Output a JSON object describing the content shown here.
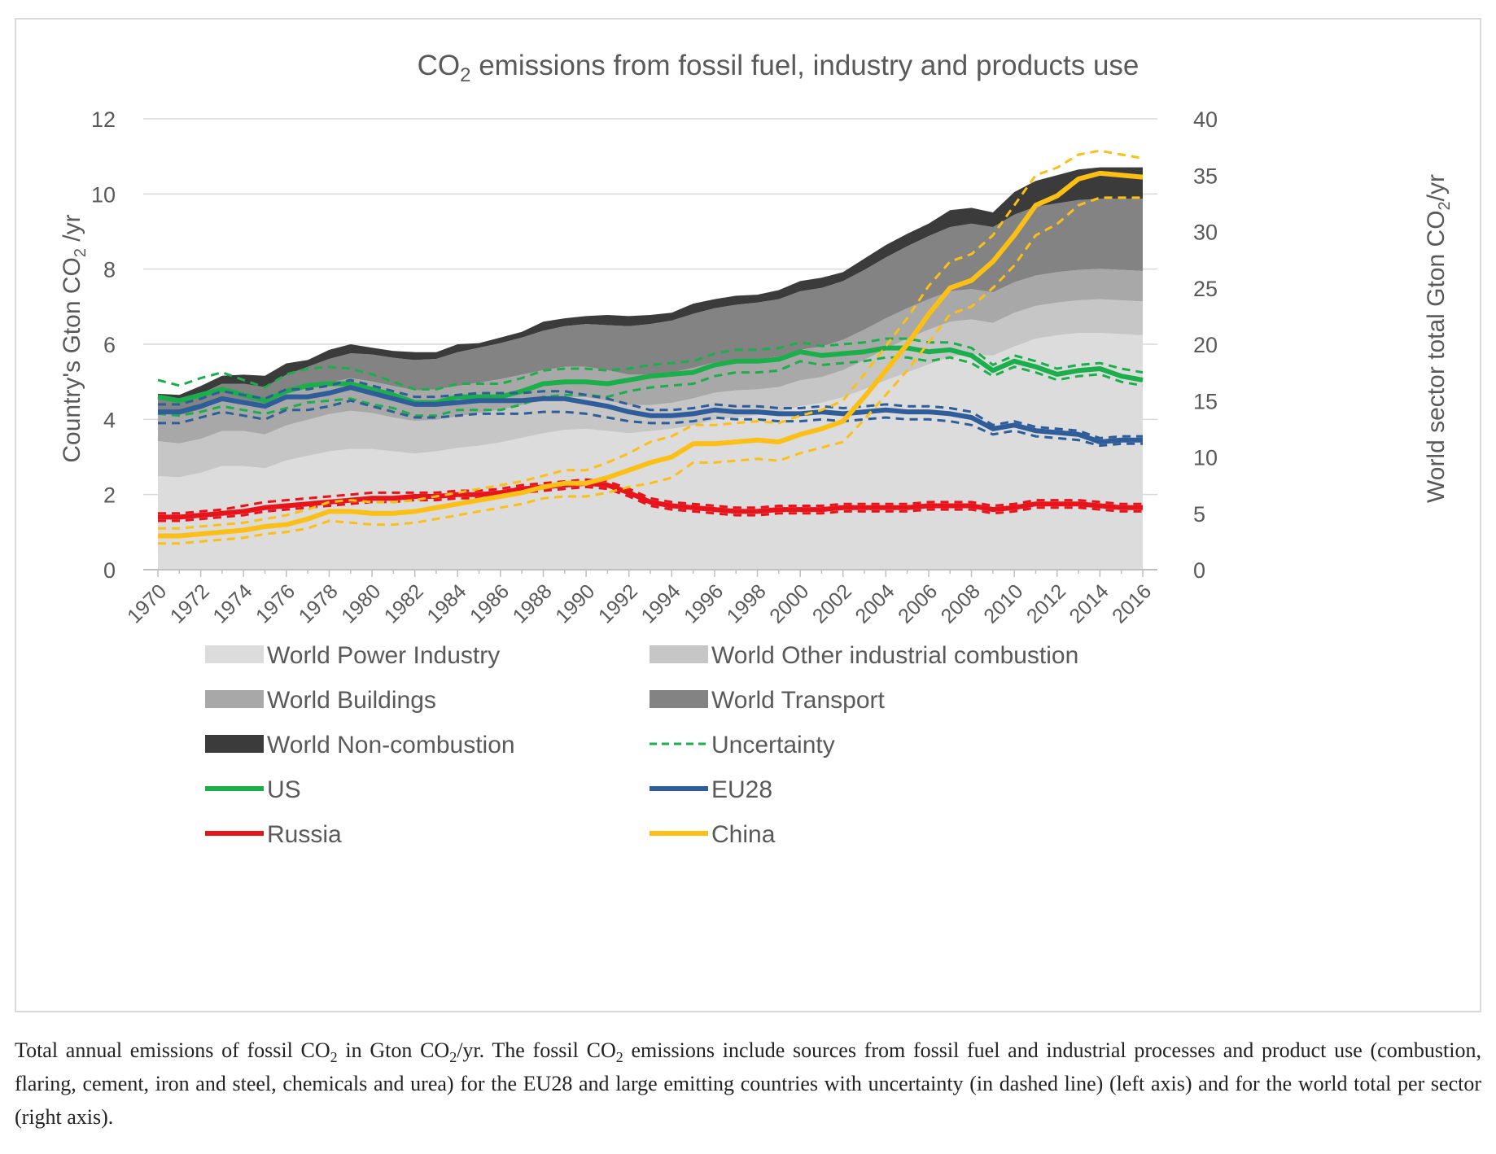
{
  "chart_data": {
    "type": "area",
    "title": "CO2 emissions from fossil fuel, industry and products use",
    "title_parts": {
      "pre": "CO",
      "sub": "2",
      "post": " emissions from fossil fuel, industry and products use"
    },
    "ylabel_left": "Country's Gton CO2 /yr",
    "ylabel_left_parts": {
      "pre": "Country's Gton CO",
      "sub": "2",
      "post": " /yr"
    },
    "ylabel_right": "World sector total Gton CO2/yr",
    "ylabel_right_parts": {
      "pre": "World sector total Gton CO",
      "sub": "2",
      "post": "/yr"
    },
    "ylim_left": [
      0,
      12
    ],
    "ylim_right": [
      0,
      40
    ],
    "yticks_left": [
      0,
      2,
      4,
      6,
      8,
      10,
      12
    ],
    "yticks_right": [
      0,
      5,
      10,
      15,
      20,
      25,
      30,
      35,
      40
    ],
    "x_start": 1970,
    "x_end": 2016,
    "x_tick_labels": [
      "1970",
      "1972",
      "1974",
      "1976",
      "1978",
      "1980",
      "1982",
      "1984",
      "1986",
      "1988",
      "1990",
      "1992",
      "1994",
      "1996",
      "1998",
      "2000",
      "2002",
      "2004",
      "2006",
      "2008",
      "2010",
      "2012",
      "2014",
      "2016"
    ],
    "stack_cumulative_right_axis": [
      {
        "name": "World Power Industry",
        "color": "#dcdcdc",
        "values": [
          8.3,
          8.2,
          8.6,
          9.2,
          9.2,
          9.0,
          9.7,
          10.1,
          10.5,
          10.7,
          10.7,
          10.5,
          10.3,
          10.5,
          10.8,
          11.0,
          11.3,
          11.7,
          12.1,
          12.4,
          12.5,
          12.3,
          12.1,
          12.3,
          12.5,
          12.8,
          13.3,
          13.5,
          13.7,
          14.0,
          14.5,
          14.8,
          15.3,
          16.0,
          16.8,
          17.5,
          18.2,
          18.9,
          19.1,
          19.0,
          19.8,
          20.5,
          20.8,
          21.0,
          21.0,
          20.9,
          20.8
        ]
      },
      {
        "name": "World Other industrial combustion",
        "color": "#c6c6c6",
        "values": [
          11.4,
          11.2,
          11.6,
          12.3,
          12.3,
          12.0,
          12.8,
          13.3,
          13.8,
          14.1,
          13.9,
          13.5,
          13.2,
          13.3,
          13.6,
          13.9,
          14.2,
          14.6,
          15.0,
          15.3,
          15.3,
          15.0,
          14.6,
          14.6,
          14.8,
          15.2,
          15.7,
          15.9,
          16.0,
          16.2,
          16.8,
          17.1,
          17.7,
          18.6,
          19.6,
          20.5,
          21.3,
          22.0,
          22.2,
          21.9,
          22.8,
          23.4,
          23.7,
          23.9,
          24.0,
          23.9,
          23.8
        ]
      },
      {
        "name": "World Buildings",
        "color": "#a8a8a8",
        "values": [
          14.0,
          13.7,
          14.2,
          15.0,
          15.0,
          14.7,
          15.6,
          16.1,
          16.6,
          17.0,
          16.7,
          16.3,
          15.9,
          16.0,
          16.3,
          16.6,
          16.9,
          17.3,
          17.7,
          18.0,
          18.0,
          17.7,
          17.3,
          17.3,
          17.5,
          17.9,
          18.4,
          18.6,
          18.7,
          18.9,
          19.5,
          19.8,
          20.4,
          21.3,
          22.3,
          23.2,
          24.0,
          24.7,
          24.9,
          24.6,
          25.5,
          26.1,
          26.4,
          26.6,
          26.7,
          26.6,
          26.5
        ]
      },
      {
        "name": "World Transport",
        "color": "#838383",
        "values": [
          15.2,
          15.0,
          15.6,
          16.5,
          16.5,
          16.2,
          17.3,
          18.0,
          18.7,
          19.2,
          19.1,
          18.8,
          18.6,
          18.7,
          19.3,
          19.7,
          20.1,
          20.6,
          21.2,
          21.6,
          21.8,
          21.7,
          21.6,
          21.8,
          22.1,
          22.7,
          23.2,
          23.5,
          23.7,
          24.0,
          24.7,
          25.0,
          25.6,
          26.6,
          27.7,
          28.7,
          29.6,
          30.4,
          30.7,
          30.4,
          31.5,
          32.2,
          32.5,
          32.8,
          32.9,
          32.9,
          32.9
        ]
      },
      {
        "name": "World Non-combustion",
        "color": "#3b3b3b",
        "values": [
          15.6,
          15.5,
          16.3,
          17.2,
          17.3,
          17.2,
          18.3,
          18.6,
          19.5,
          20.0,
          19.7,
          19.4,
          19.3,
          19.3,
          20.0,
          20.1,
          20.6,
          21.1,
          22.0,
          22.3,
          22.5,
          22.6,
          22.5,
          22.6,
          22.8,
          23.6,
          24.0,
          24.3,
          24.4,
          24.8,
          25.6,
          25.9,
          26.4,
          27.6,
          28.8,
          29.8,
          30.7,
          31.9,
          32.1,
          31.7,
          33.5,
          34.5,
          35.0,
          35.5,
          35.7,
          35.7,
          35.7
        ]
      }
    ],
    "country_series_left_axis": [
      {
        "name": "US",
        "color": "#1aaf4b",
        "values": [
          4.6,
          4.5,
          4.65,
          4.8,
          4.65,
          4.5,
          4.75,
          4.9,
          4.95,
          4.95,
          4.8,
          4.65,
          4.45,
          4.45,
          4.6,
          4.6,
          4.6,
          4.75,
          4.95,
          5.0,
          5.0,
          4.95,
          5.05,
          5.15,
          5.2,
          5.25,
          5.45,
          5.55,
          5.55,
          5.6,
          5.8,
          5.7,
          5.75,
          5.8,
          5.9,
          5.9,
          5.8,
          5.85,
          5.7,
          5.3,
          5.55,
          5.4,
          5.2,
          5.3,
          5.35,
          5.15,
          5.05
        ],
        "upper": [
          5.05,
          4.9,
          5.1,
          5.25,
          5.05,
          4.85,
          5.2,
          5.35,
          5.4,
          5.35,
          5.2,
          5.0,
          4.8,
          4.8,
          4.95,
          4.95,
          4.95,
          5.1,
          5.3,
          5.35,
          5.35,
          5.3,
          5.35,
          5.45,
          5.5,
          5.55,
          5.75,
          5.85,
          5.85,
          5.9,
          6.05,
          5.95,
          6.0,
          6.05,
          6.15,
          6.15,
          6.05,
          6.05,
          5.9,
          5.45,
          5.7,
          5.55,
          5.35,
          5.45,
          5.5,
          5.35,
          5.25
        ],
        "lower": [
          4.15,
          4.1,
          4.2,
          4.35,
          4.25,
          4.15,
          4.3,
          4.45,
          4.5,
          4.55,
          4.4,
          4.3,
          4.1,
          4.1,
          4.25,
          4.25,
          4.25,
          4.4,
          4.6,
          4.65,
          4.65,
          4.6,
          4.75,
          4.85,
          4.9,
          4.95,
          5.15,
          5.25,
          5.25,
          5.3,
          5.55,
          5.45,
          5.5,
          5.55,
          5.65,
          5.65,
          5.55,
          5.65,
          5.5,
          5.15,
          5.4,
          5.25,
          5.05,
          5.15,
          5.2,
          5.0,
          4.9
        ]
      },
      {
        "name": "EU28",
        "color": "#2e5d9a",
        "values": [
          4.2,
          4.2,
          4.35,
          4.55,
          4.45,
          4.35,
          4.6,
          4.6,
          4.7,
          4.85,
          4.7,
          4.55,
          4.4,
          4.4,
          4.45,
          4.5,
          4.5,
          4.5,
          4.55,
          4.55,
          4.45,
          4.35,
          4.2,
          4.1,
          4.1,
          4.15,
          4.25,
          4.2,
          4.2,
          4.15,
          4.15,
          4.2,
          4.15,
          4.2,
          4.25,
          4.2,
          4.2,
          4.15,
          4.05,
          3.75,
          3.85,
          3.7,
          3.65,
          3.6,
          3.4,
          3.45,
          3.45
        ],
        "upper": [
          4.4,
          4.4,
          4.55,
          4.75,
          4.65,
          4.55,
          4.8,
          4.8,
          4.9,
          5.05,
          4.9,
          4.75,
          4.6,
          4.6,
          4.65,
          4.7,
          4.7,
          4.7,
          4.75,
          4.75,
          4.65,
          4.55,
          4.4,
          4.25,
          4.25,
          4.3,
          4.4,
          4.35,
          4.35,
          4.3,
          4.3,
          4.35,
          4.3,
          4.35,
          4.4,
          4.35,
          4.35,
          4.3,
          4.2,
          3.85,
          3.95,
          3.8,
          3.75,
          3.7,
          3.5,
          3.55,
          3.55
        ],
        "lower": [
          3.9,
          3.9,
          4.05,
          4.2,
          4.1,
          4.0,
          4.25,
          4.25,
          4.35,
          4.5,
          4.35,
          4.2,
          4.05,
          4.05,
          4.1,
          4.15,
          4.15,
          4.15,
          4.2,
          4.2,
          4.15,
          4.05,
          3.95,
          3.9,
          3.9,
          3.95,
          4.05,
          4.0,
          4.0,
          3.95,
          3.95,
          4.0,
          3.95,
          4.0,
          4.05,
          4.0,
          4.0,
          3.95,
          3.85,
          3.6,
          3.7,
          3.55,
          3.5,
          3.45,
          3.3,
          3.35,
          3.35
        ]
      },
      {
        "name": "Russia",
        "color": "#e8141c",
        "values": [
          1.4,
          1.4,
          1.45,
          1.5,
          1.55,
          1.65,
          1.7,
          1.75,
          1.8,
          1.85,
          1.9,
          1.9,
          1.95,
          1.95,
          2.0,
          2.0,
          2.05,
          2.15,
          2.2,
          2.25,
          2.3,
          2.25,
          2.05,
          1.8,
          1.7,
          1.65,
          1.6,
          1.55,
          1.55,
          1.6,
          1.6,
          1.6,
          1.65,
          1.65,
          1.65,
          1.65,
          1.7,
          1.7,
          1.7,
          1.6,
          1.65,
          1.75,
          1.75,
          1.75,
          1.7,
          1.65,
          1.65
        ],
        "upper": [
          1.5,
          1.5,
          1.55,
          1.6,
          1.7,
          1.8,
          1.85,
          1.9,
          1.95,
          2.0,
          2.05,
          2.05,
          2.05,
          2.05,
          2.1,
          2.1,
          2.15,
          2.25,
          2.3,
          2.35,
          2.4,
          2.35,
          2.15,
          1.9,
          1.8,
          1.75,
          1.7,
          1.65,
          1.65,
          1.7,
          1.7,
          1.7,
          1.75,
          1.75,
          1.75,
          1.75,
          1.8,
          1.8,
          1.8,
          1.7,
          1.75,
          1.85,
          1.85,
          1.85,
          1.8,
          1.75,
          1.75
        ],
        "lower": [
          1.3,
          1.3,
          1.35,
          1.4,
          1.45,
          1.55,
          1.6,
          1.65,
          1.7,
          1.75,
          1.8,
          1.8,
          1.85,
          1.85,
          1.9,
          1.9,
          1.95,
          2.05,
          2.1,
          2.15,
          2.2,
          2.15,
          1.95,
          1.7,
          1.6,
          1.55,
          1.5,
          1.45,
          1.45,
          1.5,
          1.5,
          1.5,
          1.55,
          1.55,
          1.55,
          1.55,
          1.6,
          1.6,
          1.6,
          1.5,
          1.55,
          1.65,
          1.65,
          1.65,
          1.6,
          1.55,
          1.55
        ]
      },
      {
        "name": "China",
        "color": "#fcbf15",
        "values": [
          0.9,
          0.9,
          0.95,
          1.0,
          1.05,
          1.15,
          1.2,
          1.35,
          1.55,
          1.55,
          1.5,
          1.5,
          1.55,
          1.65,
          1.75,
          1.85,
          1.95,
          2.05,
          2.2,
          2.3,
          2.3,
          2.45,
          2.65,
          2.85,
          3.0,
          3.35,
          3.35,
          3.4,
          3.45,
          3.4,
          3.6,
          3.75,
          3.95,
          4.6,
          5.3,
          6.0,
          6.8,
          7.5,
          7.7,
          8.2,
          8.9,
          9.7,
          9.95,
          10.4,
          10.55,
          10.5,
          10.45
        ],
        "upper": [
          1.1,
          1.1,
          1.15,
          1.2,
          1.25,
          1.35,
          1.45,
          1.6,
          1.8,
          1.85,
          1.8,
          1.8,
          1.85,
          1.95,
          2.05,
          2.15,
          2.25,
          2.35,
          2.5,
          2.65,
          2.65,
          2.85,
          3.1,
          3.4,
          3.55,
          3.85,
          3.85,
          3.9,
          3.95,
          3.9,
          4.1,
          4.25,
          4.5,
          5.2,
          5.95,
          6.7,
          7.55,
          8.2,
          8.4,
          8.9,
          9.7,
          10.5,
          10.7,
          11.05,
          11.15,
          11.05,
          10.95
        ],
        "lower": [
          0.7,
          0.7,
          0.75,
          0.8,
          0.85,
          0.95,
          1.0,
          1.1,
          1.3,
          1.25,
          1.2,
          1.2,
          1.25,
          1.35,
          1.45,
          1.55,
          1.65,
          1.75,
          1.9,
          1.95,
          1.95,
          2.05,
          2.2,
          2.3,
          2.45,
          2.85,
          2.85,
          2.9,
          2.95,
          2.9,
          3.1,
          3.25,
          3.4,
          4.0,
          4.65,
          5.3,
          6.05,
          6.8,
          7.0,
          7.5,
          8.1,
          8.9,
          9.2,
          9.7,
          9.9,
          9.9,
          9.9
        ]
      }
    ],
    "legend": [
      {
        "label": "World Power Industry",
        "type": "patch",
        "color": "#dcdcdc"
      },
      {
        "label": "World Other industrial combustion",
        "type": "patch",
        "color": "#c6c6c6"
      },
      {
        "label": "World Buildings",
        "type": "patch",
        "color": "#a8a8a8"
      },
      {
        "label": "World Transport",
        "type": "patch",
        "color": "#838383"
      },
      {
        "label": "World Non-combustion",
        "type": "patch",
        "color": "#3b3b3b"
      },
      {
        "label": "Uncertainty",
        "type": "dashed",
        "color": "#1aaf4b"
      },
      {
        "label": "US",
        "type": "line",
        "color": "#1aaf4b"
      },
      {
        "label": "EU28",
        "type": "line",
        "color": "#2e5d9a"
      },
      {
        "label": "Russia",
        "type": "line",
        "color": "#e8141c"
      },
      {
        "label": "China",
        "type": "line",
        "color": "#fcbf15"
      }
    ],
    "legend_position": "bottom"
  },
  "caption": {
    "t1": "Total annual emissions of fossil CO",
    "s1": "2",
    "t2": " in Gton CO",
    "s2": "2",
    "t3": "/yr. The fossil CO",
    "s3": "2",
    "t4": " emissions include sources from fossil fuel and industrial processes and product use (combustion, flaring, cement, iron and steel, chemicals and urea) for the EU28 and large emitting countries with uncertainty (in dashed line) (left axis) and for the world total per sector (right axis)."
  }
}
